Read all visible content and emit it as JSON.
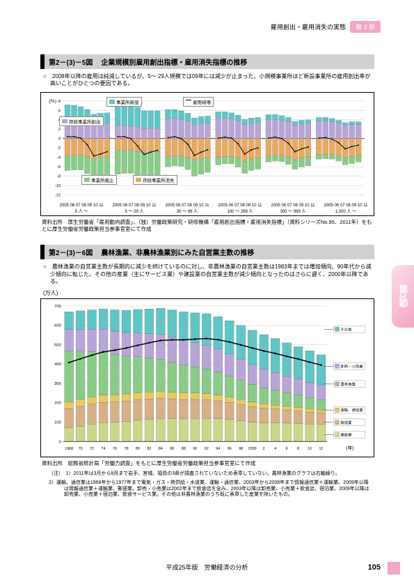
{
  "header": {
    "subtitle": "雇用創出・雇用消失の実態",
    "badge": "第 3 節"
  },
  "sideTab": "第3節",
  "footer": {
    "text": "平成25年版　労働経済の分析",
    "page": "105"
  },
  "figure1": {
    "titleNum": "第2－(3)－5図",
    "titleText": "企業規模別雇用創出指標・雇用消失指標の推移",
    "note": "○　2008年以降の雇用は純減しているが、5～ 29人規模では09年には減少が止まった。小規模事業所ほど新設事業所の雇用創出率が高いことがひとつの要因である。",
    "ylabel": "(%)",
    "yticks": [
      8,
      6,
      4,
      2,
      0,
      -2,
      -4,
      -6,
      -8,
      -10,
      -12
    ],
    "ylim": [
      -12,
      8
    ],
    "colors": {
      "new": "#5fc6c6",
      "exist_create": "#b8a5d8",
      "exist_loss": "#e8a960",
      "close": "#88cc88",
      "net_line": "#000",
      "grid": "#bbb"
    },
    "legend": {
      "new": "事業所新設",
      "exist_create": "存続事業所創出",
      "net": "雇用純増",
      "exist_loss": "存続事業所消失",
      "close": "事業所廃止"
    },
    "groups": [
      "2005 06 07 08 09 10 11\n5 人 ～",
      "2005 06 07 08 09 10 11\n5 ～ 29 人",
      "2005 06 07 08 09 10 11\n30 ～ 99 人",
      "2005 06 07 08 09 10 11\n100 ～ 299 人",
      "2005 06 07 08 09 10 11\n300 ～ 999 人",
      "2005 06 07 08 09 10 11\n1,000 人 ～"
    ],
    "series_up_new": [
      [
        3.2,
        3.1,
        3.0,
        2.7,
        2.4,
        2.4,
        2.4
      ],
      [
        5.2,
        5.0,
        4.7,
        4.2,
        3.8,
        3.7,
        3.7
      ],
      [
        2.0,
        1.9,
        1.8,
        1.7,
        1.5,
        1.5,
        1.5
      ],
      [
        1.4,
        1.3,
        1.3,
        1.2,
        1.1,
        1.1,
        1.1
      ],
      [
        1.1,
        1.0,
        1.0,
        0.9,
        0.8,
        0.8,
        0.8
      ],
      [
        0.8,
        0.7,
        0.7,
        0.6,
        0.6,
        0.6,
        0.6
      ]
    ],
    "series_up_exist": [
      [
        4.0,
        4.0,
        3.8,
        3.5,
        2.8,
        3.0,
        3.1
      ],
      [
        2.8,
        2.8,
        2.7,
        2.5,
        2.1,
        2.2,
        2.2
      ],
      [
        4.2,
        4.3,
        4.1,
        3.7,
        2.9,
        3.2,
        3.3
      ],
      [
        4.3,
        4.4,
        4.2,
        3.8,
        3.0,
        3.3,
        3.4
      ],
      [
        4.0,
        4.1,
        3.9,
        3.6,
        2.9,
        3.1,
        3.2
      ],
      [
        3.7,
        3.8,
        3.6,
        3.3,
        2.8,
        3.0,
        3.0
      ]
    ],
    "series_dn_exist": [
      [
        3.6,
        3.6,
        3.5,
        3.9,
        4.3,
        4.0,
        3.8
      ],
      [
        2.5,
        2.5,
        2.4,
        2.8,
        3.0,
        2.8,
        2.7
      ],
      [
        3.8,
        3.7,
        3.7,
        4.1,
        4.6,
        4.2,
        4.0
      ],
      [
        3.9,
        3.8,
        3.8,
        4.2,
        4.8,
        4.3,
        4.1
      ],
      [
        3.7,
        3.6,
        3.6,
        4.0,
        4.5,
        4.1,
        3.9
      ],
      [
        3.4,
        3.4,
        3.4,
        3.7,
        4.1,
        3.8,
        3.6
      ]
    ],
    "series_dn_close": [
      [
        3.2,
        3.1,
        3.2,
        3.6,
        4.6,
        4.7,
        4.5
      ],
      [
        5.1,
        4.9,
        5.0,
        5.5,
        6.3,
        6.0,
        5.7
      ],
      [
        2.2,
        2.1,
        2.2,
        2.5,
        3.4,
        3.4,
        3.2
      ],
      [
        1.7,
        1.6,
        1.6,
        1.9,
        2.6,
        2.5,
        2.4
      ],
      [
        1.3,
        1.2,
        1.3,
        1.5,
        2.0,
        2.0,
        1.9
      ],
      [
        1.0,
        0.9,
        1.0,
        1.1,
        1.5,
        1.5,
        1.4
      ]
    ],
    "net_line": [
      [
        0.4,
        0.4,
        0.1,
        -1.3,
        -3.7,
        -3.3,
        -2.8
      ],
      [
        0.4,
        0.4,
        0.0,
        -1.6,
        -3.4,
        -2.9,
        -2.5
      ],
      [
        0.2,
        0.4,
        0.0,
        -1.2,
        -3.6,
        -2.9,
        -2.4
      ],
      [
        0.1,
        0.3,
        0.1,
        -1.1,
        -3.3,
        -2.4,
        -2.0
      ],
      [
        0.1,
        0.3,
        0.0,
        -1.0,
        -2.8,
        -2.2,
        -1.8
      ],
      [
        0.1,
        0.2,
        -0.1,
        -0.9,
        -2.2,
        -1.7,
        -1.4
      ]
    ],
    "source": "資料出所　厚生労働省「雇用動向調査」、（独）労働政策研究・研修機構「雇用創出指標・雇用消失指標」（資料シリーズNo.95、2011年）をもとに厚生労働省労働政策担当参事官室にて作成"
  },
  "figure2": {
    "titleNum": "第2－(3)－6図",
    "titleText": "農林漁業、非農林漁業別にみた自営業主数の推移",
    "note": "○　農林漁業の自営業主数が長期的に減少を続けているのに対し、非農林漁業の自営業主数は1983年までは増加傾向、90年代から減少傾向に転じた。その他の産業（主にサービス業）や建設業の自営業主数が減少傾向となったのはさらに遅く、2000年以降である。",
    "ylabel": "(万人)",
    "yticks": [
      700,
      600,
      500,
      400,
      300,
      200,
      100,
      0
    ],
    "ylim": [
      0,
      700
    ],
    "xlabel": "(年)",
    "years": [
      1968,
      70,
      72,
      74,
      76,
      78,
      80,
      82,
      84,
      86,
      88,
      90,
      92,
      94,
      96,
      98,
      2000,
      2,
      4,
      6,
      8,
      10,
      12
    ],
    "colors": {
      "other": "#5fc6c6",
      "retail": "#b8a5d8",
      "agri": "#88cc88",
      "transport": "#e8c960",
      "manuf": "#d8b088",
      "construct": "#c9d888",
      "line": "#000",
      "grid": "#bbb"
    },
    "legend": {
      "other": "その他",
      "retail": "卸売・小売業",
      "agri": "農林漁業",
      "transport": "運輸、通信業",
      "manuf": "製造業",
      "construct": "建設業"
    },
    "stack_total": [
      670,
      675,
      680,
      685,
      680,
      678,
      682,
      685,
      688,
      680,
      670,
      665,
      660,
      645,
      624,
      600,
      575,
      552,
      532,
      510,
      490,
      468,
      448
    ],
    "stack_other": [
      92,
      96,
      100,
      105,
      110,
      115,
      120,
      128,
      135,
      142,
      148,
      155,
      163,
      168,
      172,
      175,
      177,
      178,
      176,
      172,
      168,
      163,
      158
    ],
    "stack_retail": [
      110,
      113,
      116,
      118,
      120,
      122,
      124,
      126,
      128,
      128,
      126,
      124,
      122,
      118,
      113,
      108,
      102,
      96,
      91,
      86,
      82,
      78,
      74
    ],
    "stack_agri": [
      262,
      248,
      234,
      222,
      208,
      195,
      185,
      175,
      166,
      155,
      145,
      136,
      128,
      119,
      110,
      101,
      92,
      84,
      77,
      70,
      64,
      58,
      53
    ],
    "stack_trans": [
      36,
      37,
      37,
      38,
      38,
      38,
      37,
      37,
      36,
      35,
      34,
      33,
      32,
      30,
      28,
      26,
      24,
      22,
      20,
      19,
      18,
      17,
      16
    ],
    "stack_manuf": [
      99,
      101,
      103,
      104,
      105,
      105,
      105,
      105,
      104,
      102,
      100,
      98,
      95,
      92,
      88,
      84,
      80,
      76,
      72,
      68,
      65,
      62,
      59
    ],
    "stack_const": [
      71,
      80,
      90,
      98,
      99,
      103,
      111,
      114,
      119,
      118,
      117,
      119,
      120,
      118,
      113,
      106,
      100,
      96,
      96,
      95,
      93,
      90,
      88
    ],
    "line_nonagri": [
      408,
      427,
      446,
      463,
      472,
      483,
      497,
      510,
      522,
      525,
      525,
      529,
      532,
      526,
      514,
      499,
      483,
      468,
      455,
      440,
      426,
      410,
      395
    ],
    "source": "資料出所　総務省統計局「労働力調査」をもとに厚生労働省労働政策担当参事官室にて作成",
    "notes1": "（注）　1）2011年は3月から8月まで岩手、宮城、福島の3県が調査されていないため表章していない。農林漁業のグラフは右軸繰り。",
    "notes2": "2）運輸、通信業は1968年から1977年まで電気・ガス・熱供給・水道業、運輸・通信業、2003年から2008年まで情報通信業＋運輸業、2009年以降は情報通信業＋運輸業、郵便業。卸売・小売業は2002年まで飲食店を含み、2003年以降は卸売業、小売業＋飲食店、宿泊業、2009年以降は卸売業、小売業＋宿泊業、飲食サービス業。その他は非農林漁業のうち既に表章した産業を除いたもの。"
  }
}
